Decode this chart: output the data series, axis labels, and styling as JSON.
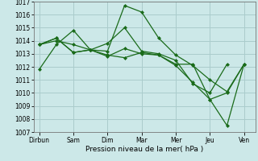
{
  "xlabel": "Pression niveau de la mer( hPa )",
  "background_color": "#cce8e8",
  "grid_color": "#aacccc",
  "line_color": "#1a6b1a",
  "ylim": [
    1007,
    1017
  ],
  "yticks": [
    1007,
    1008,
    1009,
    1010,
    1011,
    1012,
    1013,
    1014,
    1015,
    1016,
    1017
  ],
  "day_labels": [
    "Dirbun",
    "Sam",
    "Dim",
    "Mar",
    "Mer",
    "Jeu",
    "Ven"
  ],
  "day_positions": [
    0,
    36,
    72,
    108,
    144,
    180,
    216
  ],
  "xlim": [
    -6,
    228
  ],
  "series": [
    {
      "x": [
        0,
        18,
        36,
        54,
        72,
        90,
        108,
        126,
        144,
        162,
        180,
        198,
        216
      ],
      "y": [
        1011.8,
        1013.7,
        1014.8,
        1013.3,
        1013.2,
        1016.7,
        1016.2,
        1014.2,
        1012.9,
        1012.1,
        1011.0,
        1010.1,
        1012.2
      ]
    },
    {
      "x": [
        0,
        18,
        36,
        54,
        72,
        90,
        108,
        126,
        144,
        162,
        180,
        198
      ],
      "y": [
        1013.7,
        1014.0,
        1013.7,
        1013.3,
        1013.8,
        1015.0,
        1013.2,
        1013.0,
        1012.5,
        1010.7,
        1010.0,
        1012.2
      ]
    },
    {
      "x": [
        0,
        18,
        36,
        54,
        72,
        90,
        108,
        126,
        144,
        162,
        180,
        198,
        216
      ],
      "y": [
        1013.7,
        1014.2,
        1013.1,
        1013.3,
        1012.9,
        1012.7,
        1013.1,
        1012.9,
        1012.1,
        1010.8,
        1009.5,
        1010.0,
        1012.2
      ]
    },
    {
      "x": [
        0,
        18,
        36,
        54,
        72,
        90,
        108,
        126,
        144,
        162,
        180,
        198,
        216
      ],
      "y": [
        1013.7,
        1014.2,
        1013.1,
        1013.3,
        1012.8,
        1013.4,
        1013.0,
        1012.9,
        1012.2,
        1012.2,
        1009.5,
        1007.5,
        1012.2
      ]
    }
  ]
}
